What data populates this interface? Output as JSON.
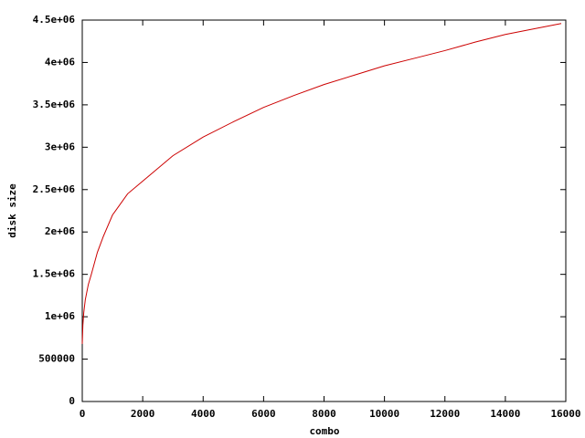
{
  "chart_data": {
    "type": "line",
    "xlabel": "combo",
    "ylabel": "disk size",
    "x": [
      0,
      20,
      50,
      100,
      200,
      300,
      500,
      700,
      1000,
      1500,
      2000,
      3000,
      4000,
      5000,
      6000,
      7000,
      8000,
      9000,
      10000,
      11000,
      12000,
      13000,
      14000,
      15000,
      15850
    ],
    "series": [
      {
        "color": "#cc0000",
        "values": [
          680000,
          900000,
          1050000,
          1200000,
          1380000,
          1500000,
          1760000,
          1950000,
          2200000,
          2450000,
          2600000,
          2900000,
          3120000,
          3300000,
          3470000,
          3610000,
          3740000,
          3850000,
          3960000,
          4050000,
          4140000,
          4240000,
          4330000,
          4400000,
          4460000
        ]
      }
    ],
    "xlim": [
      0,
      16000
    ],
    "xticks": [
      0,
      2000,
      4000,
      6000,
      8000,
      10000,
      12000,
      14000,
      16000
    ],
    "ylim": [
      0,
      4500000
    ],
    "yticks": [
      0,
      500000,
      {
        "value": 1000000,
        "label": "1e+06"
      },
      {
        "value": 1500000,
        "label": "1.5e+06"
      },
      {
        "value": 2000000,
        "label": "2e+06"
      },
      {
        "value": 2500000,
        "label": "2.5e+06"
      },
      {
        "value": 3000000,
        "label": "3e+06"
      },
      {
        "value": 3500000,
        "label": "3.5e+06"
      },
      {
        "value": 4000000,
        "label": "4e+06"
      },
      {
        "value": 4500000,
        "label": "4.5e+06"
      }
    ],
    "grid": false
  }
}
